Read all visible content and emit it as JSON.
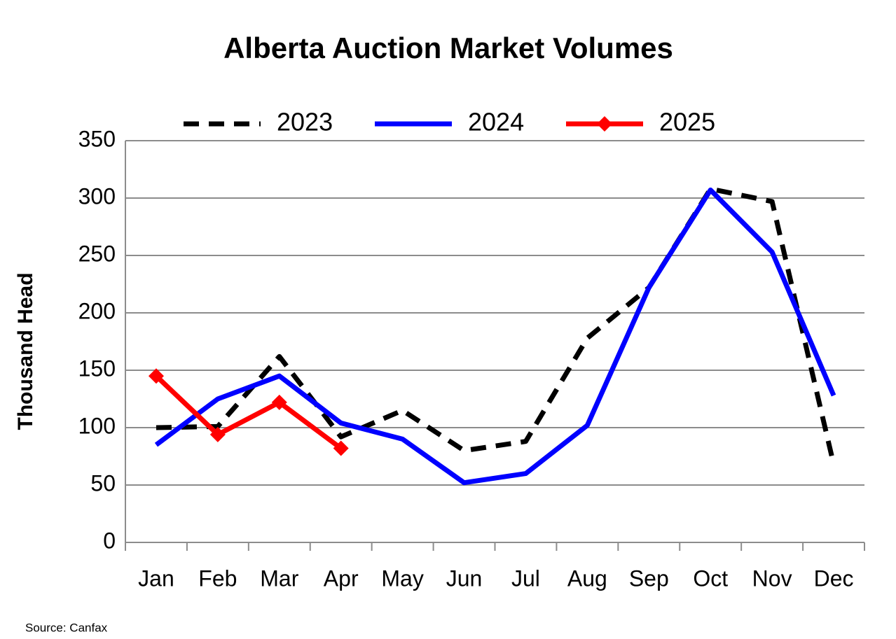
{
  "chart_data": {
    "type": "line",
    "title": "Alberta Auction Market Volumes",
    "y_label": "Thousand Head",
    "source": "Source: Canfax",
    "categories": [
      "Jan",
      "Feb",
      "Mar",
      "Apr",
      "May",
      "Jun",
      "Jul",
      "Aug",
      "Sep",
      "Oct",
      "Nov",
      "Dec"
    ],
    "series": [
      {
        "name": "2023",
        "color": "#000000",
        "dashed": true,
        "values": [
          100,
          101,
          162,
          92,
          115,
          80,
          88,
          178,
          222,
          308,
          297,
          68
        ]
      },
      {
        "name": "2024",
        "color": "#0000ff",
        "values": [
          85,
          125,
          145,
          104,
          90,
          52,
          60,
          102,
          222,
          307,
          253,
          128
        ]
      },
      {
        "name": "2025",
        "color": "#ff0000",
        "markers": true,
        "values": [
          145,
          94,
          122,
          82,
          null,
          null,
          null,
          null,
          null,
          null,
          null,
          null
        ]
      }
    ],
    "ylim": [
      0,
      350
    ],
    "yticks": [
      0,
      50,
      100,
      150,
      200,
      250,
      300,
      350
    ],
    "grid": true,
    "legend": "top"
  }
}
